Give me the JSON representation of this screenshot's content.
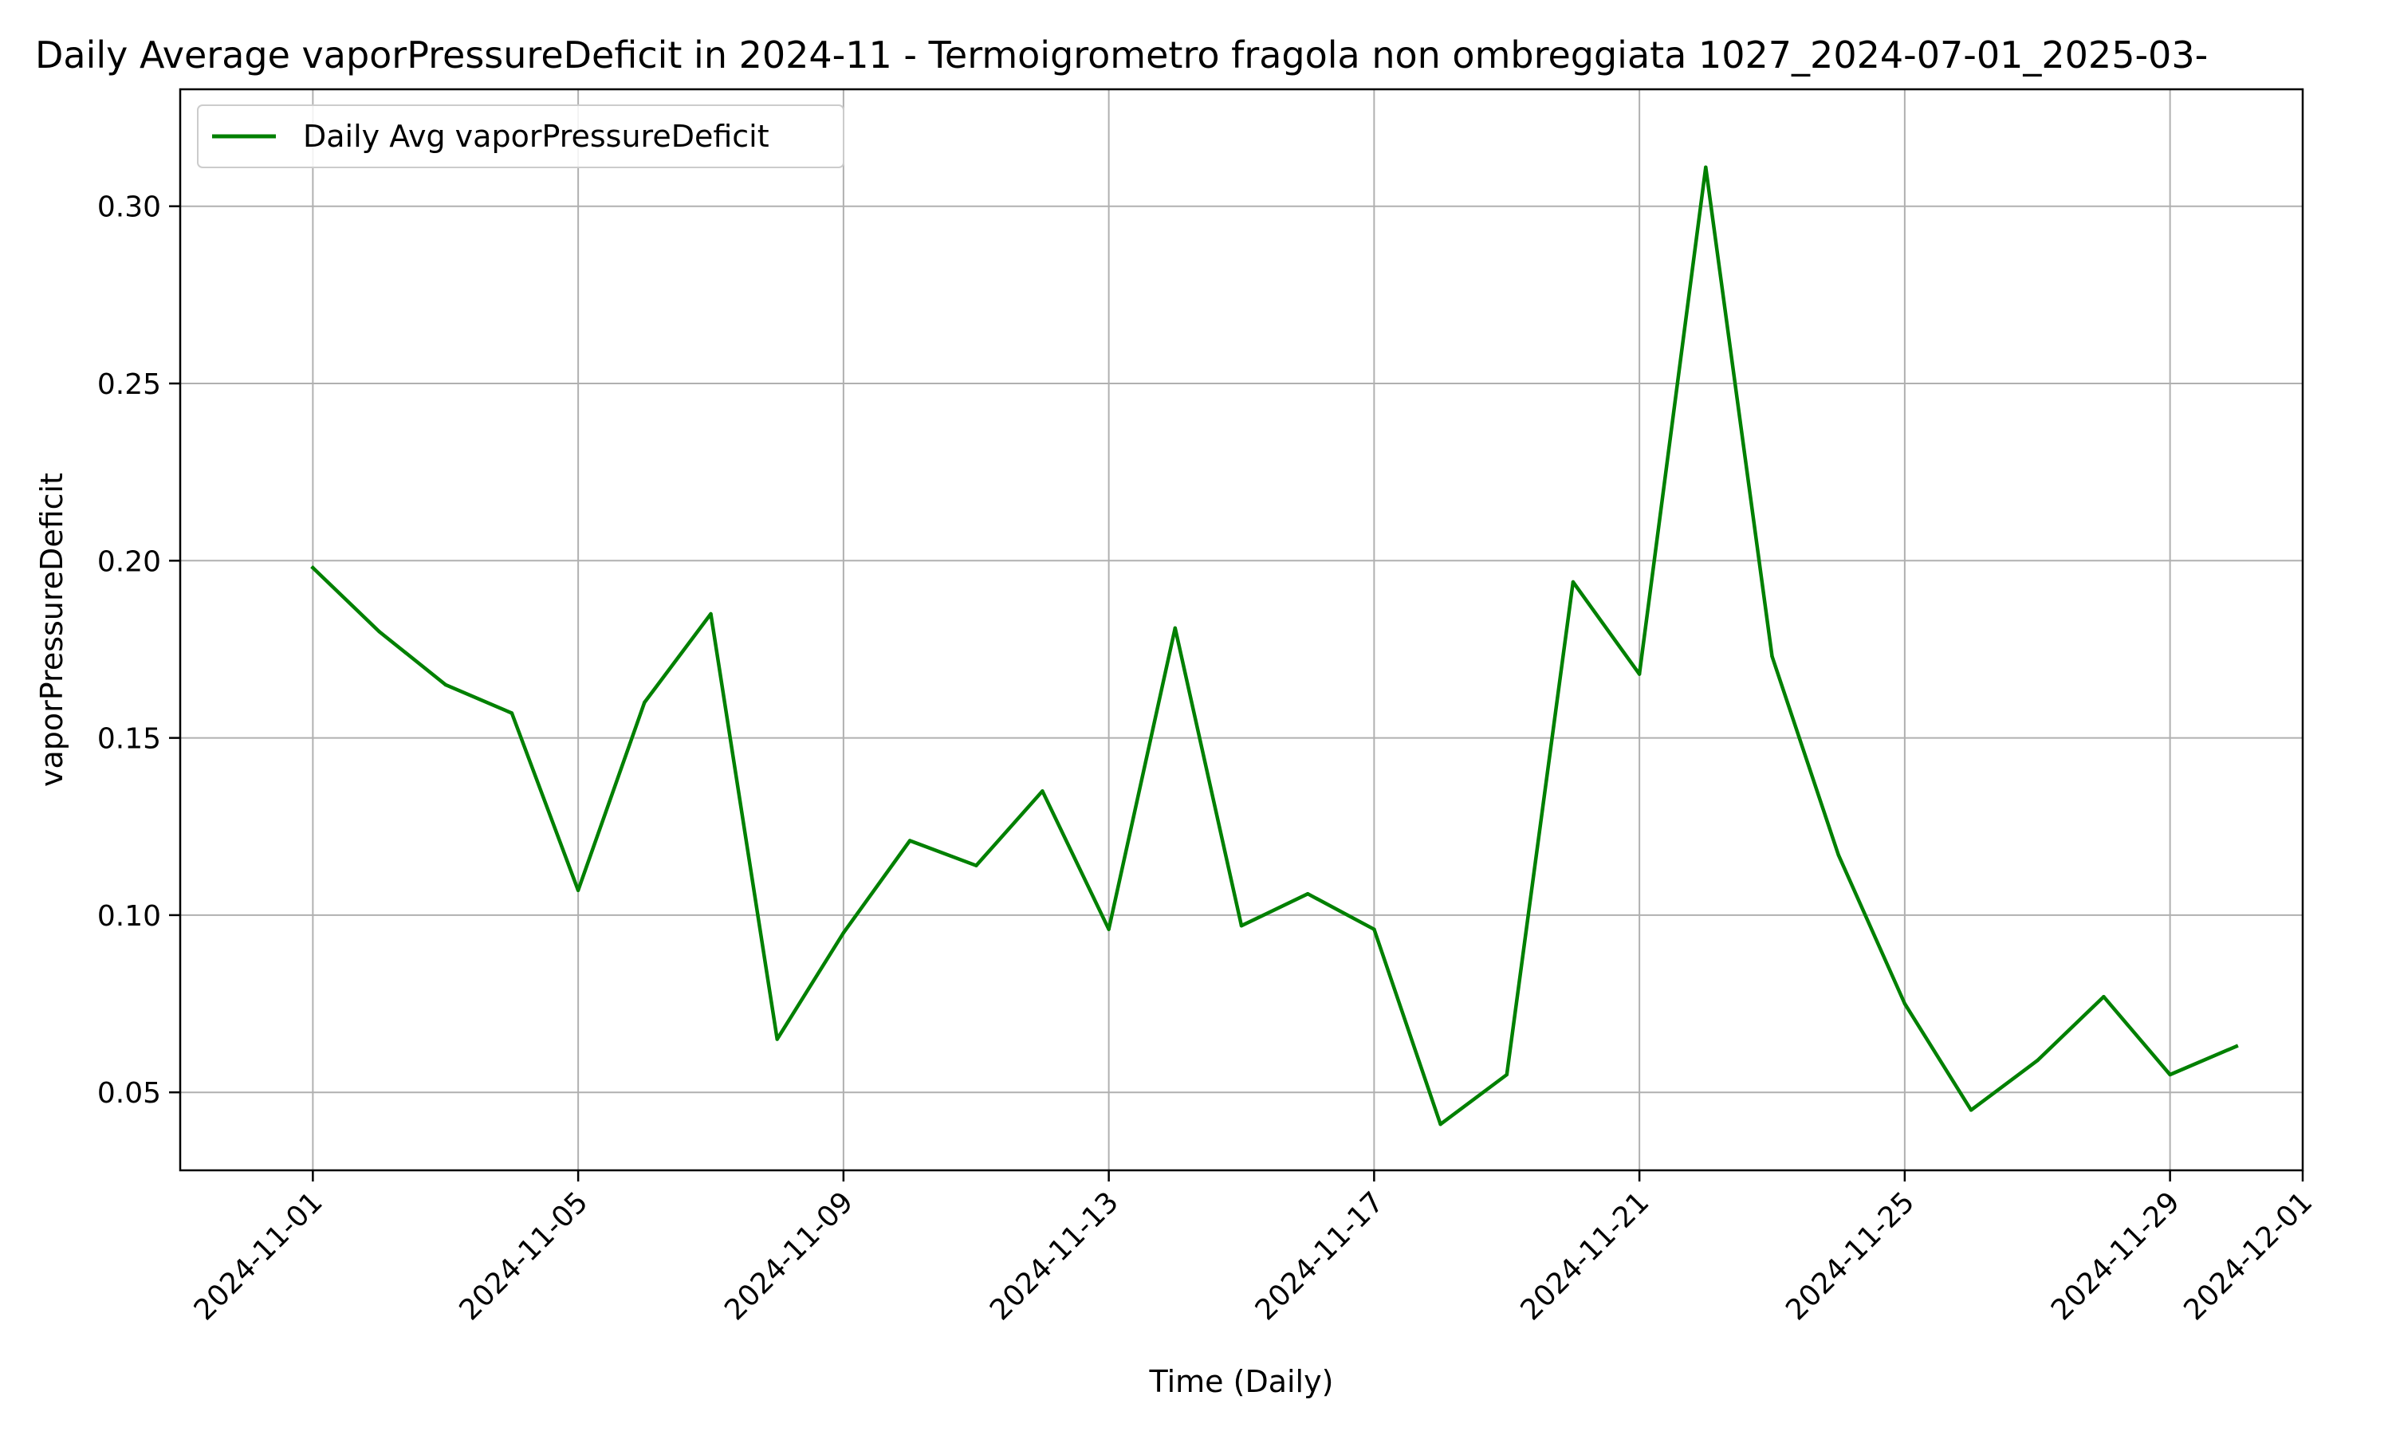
{
  "chart_data": {
    "type": "line",
    "title": "Daily Average vaporPressureDeficit in 2024-11 - Termoigrometro fragola non ombreggiata 1027_2024-07-01_2025-03-",
    "xlabel": "Time (Daily)",
    "ylabel": "vaporPressureDeficit",
    "xlim": [
      "2024-10-30",
      "2024-12-01"
    ],
    "ylim": [
      0.028,
      0.333
    ],
    "x_ticks": [
      "2024-11-01",
      "2024-11-05",
      "2024-11-09",
      "2024-11-13",
      "2024-11-17",
      "2024-11-21",
      "2024-11-25",
      "2024-11-29",
      "2024-12-01"
    ],
    "y_ticks": [
      "0.05",
      "0.10",
      "0.15",
      "0.20",
      "0.25",
      "0.30"
    ],
    "grid": true,
    "legend_position": "top-left",
    "series": [
      {
        "name": "Daily Avg vaporPressureDeficit",
        "color": "#008000",
        "x": [
          "2024-11-01",
          "2024-11-02",
          "2024-11-03",
          "2024-11-04",
          "2024-11-05",
          "2024-11-06",
          "2024-11-07",
          "2024-11-08",
          "2024-11-09",
          "2024-11-10",
          "2024-11-11",
          "2024-11-12",
          "2024-11-13",
          "2024-11-14",
          "2024-11-15",
          "2024-11-16",
          "2024-11-17",
          "2024-11-18",
          "2024-11-19",
          "2024-11-20",
          "2024-11-21",
          "2024-11-22",
          "2024-11-23",
          "2024-11-24",
          "2024-11-25",
          "2024-11-26",
          "2024-11-27",
          "2024-11-28",
          "2024-11-29",
          "2024-11-30"
        ],
        "values": [
          0.198,
          0.18,
          0.165,
          0.157,
          0.107,
          0.16,
          0.185,
          0.065,
          0.095,
          0.121,
          0.114,
          0.135,
          0.096,
          0.181,
          0.097,
          0.106,
          0.096,
          0.041,
          0.055,
          0.194,
          0.168,
          0.311,
          0.173,
          0.117,
          0.075,
          0.045,
          0.059,
          0.077,
          0.055,
          0.063
        ]
      }
    ]
  }
}
